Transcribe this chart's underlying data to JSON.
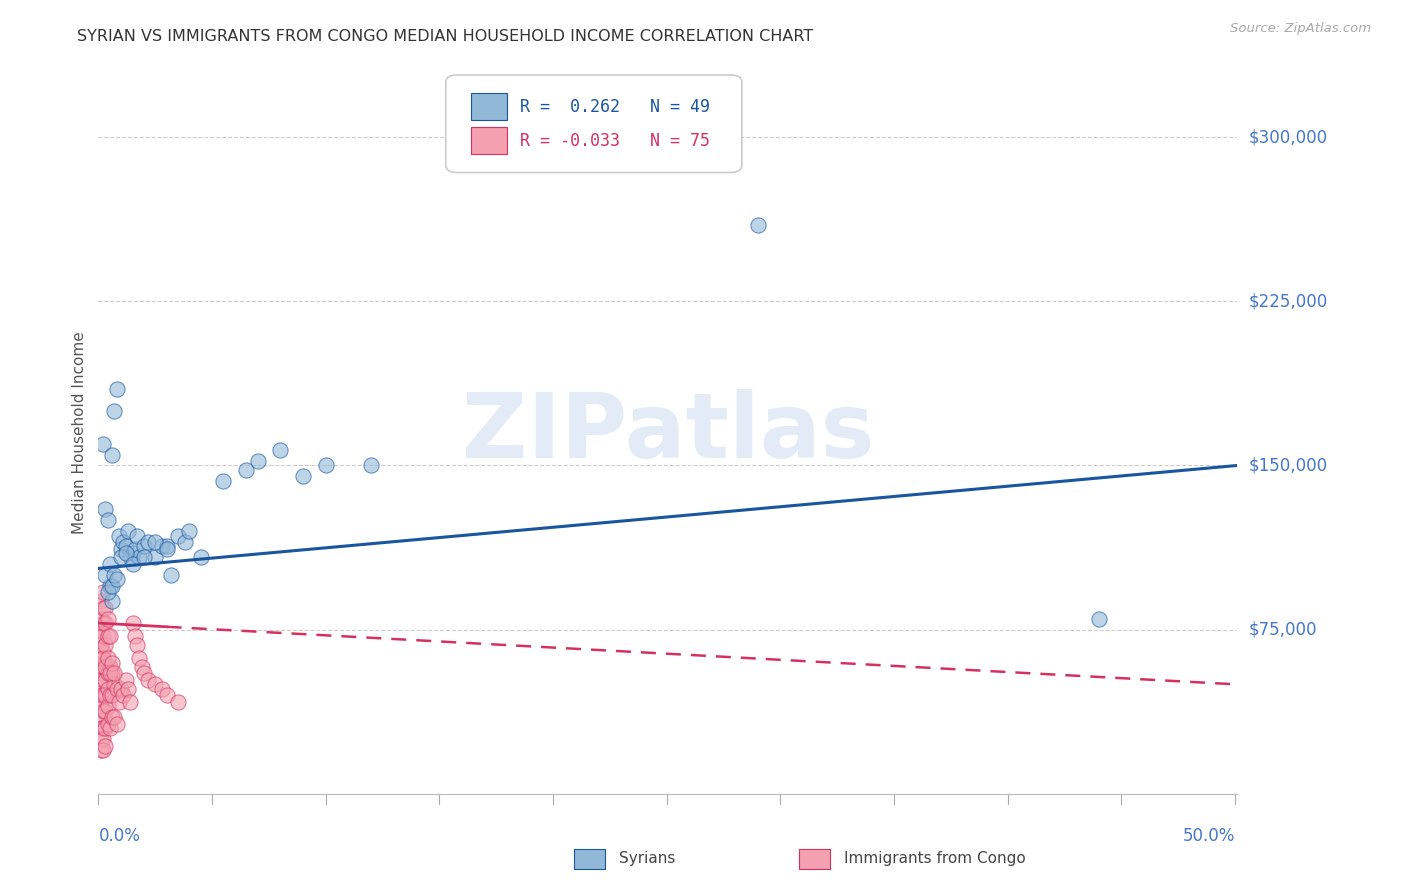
{
  "title": "SYRIAN VS IMMIGRANTS FROM CONGO MEDIAN HOUSEHOLD INCOME CORRELATION CHART",
  "source": "Source: ZipAtlas.com",
  "ylabel": "Median Household Income",
  "xlim": [
    0,
    0.501
  ],
  "ylim": [
    0,
    330000
  ],
  "ytick_vals": [
    75000,
    150000,
    225000,
    300000
  ],
  "ytick_labels": [
    "$75,000",
    "$150,000",
    "$225,000",
    "$300,000"
  ],
  "blue_color": "#92b8d8",
  "blue_line": "#1a56a0",
  "pink_color": "#f4a0b0",
  "pink_line": "#d43060",
  "title_color": "#333333",
  "label_color": "#4477cc",
  "grid_color": "#cccccc",
  "source_color": "#aaaaaa",
  "watermark": "ZIPatlas",
  "legend_r1": "R =  0.262",
  "legend_n1": "N = 49",
  "legend_r2": "R = -0.033",
  "legend_n2": "N = 75",
  "blue_trend_x": [
    0.0,
    0.501
  ],
  "blue_trend_y": [
    103000,
    150000
  ],
  "pink_trend_x": [
    0.0,
    0.501
  ],
  "pink_trend_y": [
    78000,
    50000
  ],
  "syrians_x": [
    0.002,
    0.003,
    0.004,
    0.005,
    0.006,
    0.006,
    0.007,
    0.008,
    0.009,
    0.01,
    0.011,
    0.012,
    0.013,
    0.014,
    0.015,
    0.016,
    0.017,
    0.018,
    0.02,
    0.022,
    0.025,
    0.028,
    0.03,
    0.032,
    0.035,
    0.038,
    0.04,
    0.045,
    0.055,
    0.065,
    0.07,
    0.08,
    0.09,
    0.1,
    0.003,
    0.004,
    0.005,
    0.006,
    0.007,
    0.008,
    0.01,
    0.012,
    0.015,
    0.02,
    0.025,
    0.03,
    0.12,
    0.29,
    0.44
  ],
  "syrians_y": [
    160000,
    130000,
    125000,
    95000,
    155000,
    88000,
    175000,
    185000,
    118000,
    112000,
    115000,
    113000,
    120000,
    108000,
    110000,
    112000,
    118000,
    108000,
    113000,
    115000,
    108000,
    113000,
    113000,
    100000,
    118000,
    115000,
    120000,
    108000,
    143000,
    148000,
    152000,
    157000,
    145000,
    150000,
    100000,
    92000,
    105000,
    95000,
    100000,
    98000,
    108000,
    110000,
    105000,
    108000,
    115000,
    112000,
    150000,
    260000,
    80000
  ],
  "congo_x": [
    0.001,
    0.001,
    0.001,
    0.001,
    0.001,
    0.001,
    0.001,
    0.001,
    0.001,
    0.001,
    0.002,
    0.002,
    0.002,
    0.002,
    0.002,
    0.002,
    0.002,
    0.002,
    0.003,
    0.003,
    0.003,
    0.003,
    0.003,
    0.003,
    0.004,
    0.004,
    0.004,
    0.004,
    0.005,
    0.005,
    0.005,
    0.006,
    0.006,
    0.006,
    0.007,
    0.007,
    0.008,
    0.008,
    0.009,
    0.01,
    0.011,
    0.012,
    0.013,
    0.014,
    0.015,
    0.016,
    0.017,
    0.018,
    0.019,
    0.02,
    0.022,
    0.025,
    0.028,
    0.03,
    0.035,
    0.001,
    0.001,
    0.002,
    0.002,
    0.003,
    0.003,
    0.004,
    0.005,
    0.002,
    0.001,
    0.001,
    0.002,
    0.003,
    0.004,
    0.002,
    0.003,
    0.004,
    0.005,
    0.006,
    0.007
  ],
  "congo_y": [
    70000,
    62000,
    55000,
    50000,
    45000,
    40000,
    35000,
    30000,
    25000,
    20000,
    65000,
    58000,
    52000,
    45000,
    38000,
    30000,
    25000,
    20000,
    60000,
    52000,
    45000,
    38000,
    30000,
    22000,
    55000,
    48000,
    40000,
    32000,
    58000,
    45000,
    30000,
    55000,
    45000,
    35000,
    50000,
    35000,
    48000,
    32000,
    42000,
    48000,
    45000,
    52000,
    48000,
    42000,
    78000,
    72000,
    68000,
    62000,
    58000,
    55000,
    52000,
    50000,
    48000,
    45000,
    42000,
    75000,
    68000,
    72000,
    62000,
    68000,
    58000,
    62000,
    55000,
    78000,
    80000,
    88000,
    85000,
    78000,
    72000,
    92000,
    85000,
    80000,
    72000,
    60000,
    55000
  ]
}
